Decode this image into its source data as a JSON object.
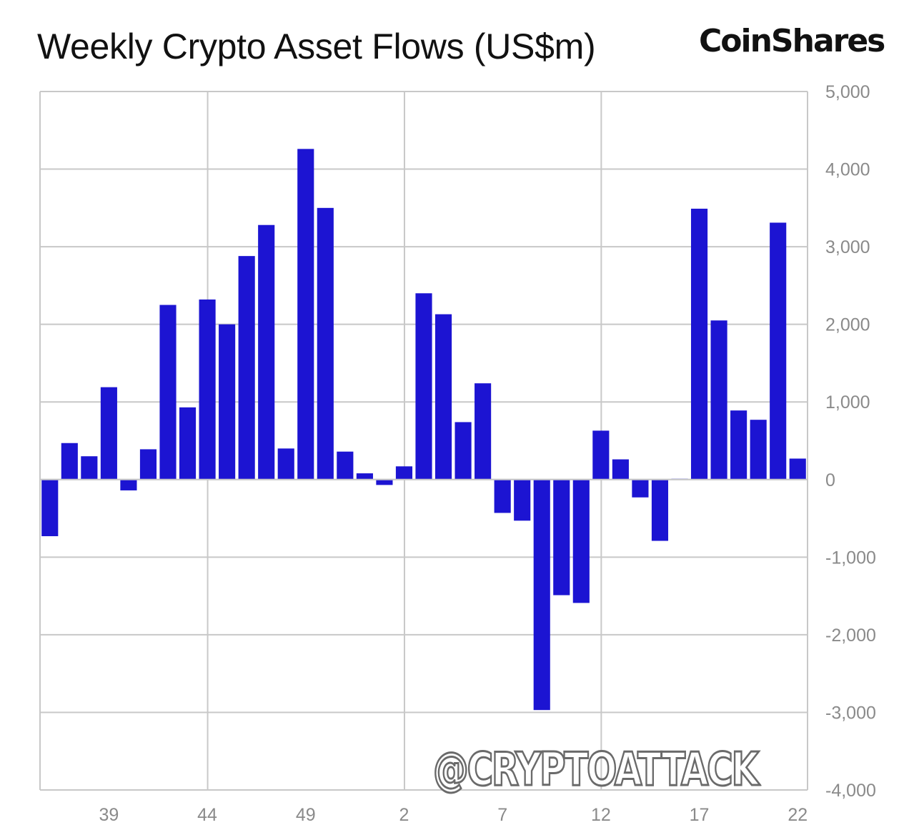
{
  "header": {
    "title": "Weekly Crypto Asset Flows (US$m)",
    "brand": "CoinShares"
  },
  "watermark": "@CRYPTOATTACK",
  "colors": {
    "bar": "#1c14d2",
    "grid": "#c8c8c8",
    "tick_text": "#8a8a8a"
  },
  "chart_data": {
    "type": "bar",
    "title": "Weekly Crypto Asset Flows (US$m)",
    "xlabel": "",
    "ylabel": "",
    "ylim": [
      -4000,
      5000
    ],
    "y_ticks": [
      5000,
      4000,
      3000,
      2000,
      1000,
      0,
      -1000,
      -2000,
      -3000,
      -4000
    ],
    "y_tick_labels": [
      "5,000",
      "4,000",
      "3,000",
      "2,000",
      "1,000",
      "0",
      "-1,000",
      "-2,000",
      "-3,000",
      "-4,000"
    ],
    "y_axis_side": "right",
    "x_tick_labels": [
      {
        "label": "39",
        "index": 3
      },
      {
        "label": "44",
        "index": 8
      },
      {
        "label": "49",
        "index": 13
      },
      {
        "label": "2",
        "index": 18
      },
      {
        "label": "7",
        "index": 23
      },
      {
        "label": "12",
        "index": 28
      },
      {
        "label": "17",
        "index": 33
      },
      {
        "label": "22",
        "index": 38
      }
    ],
    "vertical_grid_after_index": [
      8,
      18,
      28
    ],
    "grid": true,
    "legend": "none",
    "categories": [
      "36",
      "37",
      "38",
      "39",
      "40",
      "41",
      "42",
      "43",
      "44",
      "45",
      "46",
      "47",
      "48",
      "49",
      "50",
      "51",
      "52",
      "1",
      "2",
      "3",
      "4",
      "5",
      "6",
      "7",
      "8",
      "9",
      "10",
      "11",
      "12",
      "13",
      "14",
      "15",
      "16",
      "17",
      "18",
      "19",
      "20",
      "21",
      "22"
    ],
    "values": [
      -730,
      470,
      300,
      1190,
      -140,
      390,
      2250,
      930,
      2320,
      2000,
      2880,
      3280,
      400,
      4260,
      3500,
      360,
      80,
      -70,
      170,
      2400,
      2130,
      740,
      1240,
      -430,
      -530,
      -2970,
      -1490,
      -1590,
      630,
      260,
      -230,
      -790,
      10,
      3490,
      2050,
      890,
      770,
      3310,
      270
    ]
  }
}
